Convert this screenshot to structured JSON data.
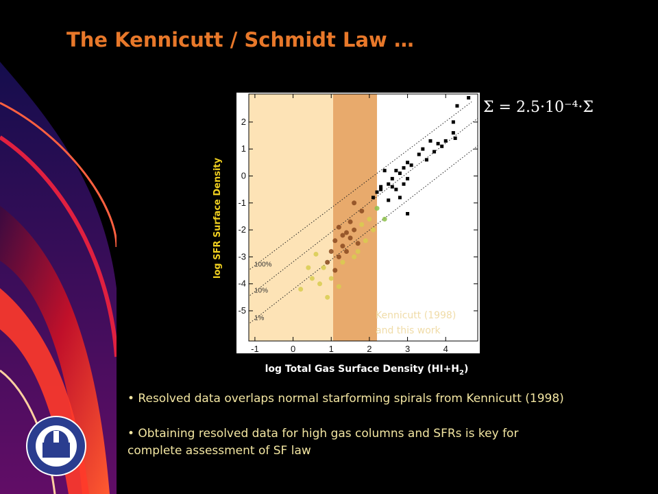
{
  "title": "The Kennicutt / Schmidt Law …",
  "equation": "Σ = 2.5·10⁻⁴·Σ",
  "chart_data": {
    "type": "scatter",
    "ylabel": "log SFR Surface Density",
    "xlabel": [
      "log Total Gas Surface Density (HI+H",
      "2",
      ")"
    ],
    "xlim": [
      -1.16,
      4.84
    ],
    "ylim": [
      -6.12,
      3.04
    ],
    "xticks": [
      -1,
      0,
      1,
      2,
      3,
      4
    ],
    "yticks": [
      2,
      1,
      0,
      -1,
      -2,
      -3,
      -4,
      -5
    ],
    "bands": [
      {
        "from": -1.16,
        "to": 1.05,
        "color": "#fde3b6"
      },
      {
        "from": 1.05,
        "to": 2.2,
        "color": "#e8aa6c"
      }
    ],
    "lines": [
      {
        "label": "100%",
        "x": [
          -1.13,
          4.68
        ],
        "y": [
          -3.46,
          2.75
        ]
      },
      {
        "label": "10%",
        "x": [
          -1.13,
          4.84
        ],
        "y": [
          -4.43,
          2.14
        ]
      },
      {
        "label": "1%",
        "x": [
          -1.13,
          4.84
        ],
        "y": [
          -5.45,
          1.12
        ]
      }
    ],
    "annotation": [
      "Kennicutt (1998)",
      "and this work"
    ],
    "series": [
      {
        "color": "#d8cc50",
        "marker": "circle",
        "x": [
          0.2,
          0.5,
          0.7,
          0.8,
          1.0,
          1.3,
          1.6,
          1.9,
          2.1,
          1.8,
          0.6,
          0.4,
          1.2,
          0.9,
          1.7,
          2.0
        ],
        "y": [
          -4.2,
          -3.8,
          -4.0,
          -3.4,
          -3.8,
          -3.2,
          -3.0,
          -2.4,
          -2.0,
          -1.8,
          -2.9,
          -3.4,
          -4.1,
          -4.5,
          -2.8,
          -1.6
        ]
      },
      {
        "color": "#8a4a20",
        "marker": "circle",
        "x": [
          1.6,
          1.8,
          1.2,
          1.4,
          1.1,
          1.3,
          1.5,
          1.7,
          1.0,
          1.2,
          1.4,
          0.9,
          1.1,
          1.6,
          1.3,
          1.5
        ],
        "y": [
          -1.0,
          -1.3,
          -1.9,
          -2.1,
          -2.4,
          -2.6,
          -2.3,
          -2.5,
          -2.8,
          -3.0,
          -2.8,
          -3.2,
          -3.5,
          -2.0,
          -2.2,
          -1.7
        ]
      },
      {
        "color": "#8cc04a",
        "marker": "circle",
        "x": [
          2.2,
          2.4
        ],
        "y": [
          -1.2,
          -1.6
        ]
      },
      {
        "color": "#000000",
        "marker": "square",
        "x": [
          4.6,
          4.3,
          4.2,
          4.2,
          4.0,
          4.25,
          3.8,
          3.9,
          3.6,
          3.7,
          3.4,
          3.3,
          3.5,
          3.0,
          2.9,
          3.1,
          2.8,
          2.6,
          2.7,
          2.9,
          3.0,
          2.4,
          2.5,
          2.3,
          2.2,
          2.5,
          2.7,
          3.0,
          2.1,
          2.3,
          2.6,
          2.8
        ],
        "y": [
          2.9,
          2.6,
          2.0,
          1.6,
          1.3,
          1.4,
          1.2,
          1.1,
          1.3,
          0.9,
          1.0,
          0.8,
          0.6,
          0.5,
          0.3,
          0.4,
          0.1,
          -0.1,
          0.2,
          -0.3,
          -0.1,
          0.2,
          -0.3,
          -0.5,
          -0.6,
          -0.9,
          -0.5,
          -1.4,
          -0.8,
          -0.4,
          -0.4,
          -0.8
        ]
      }
    ]
  },
  "bullets": [
    "• Resolved data overlaps normal starforming spirals from Kennicutt (1998)",
    [
      "• Obtaining resolved data for high gas columns and SFRs is key for",
      "complete assessment of SF law"
    ]
  ]
}
